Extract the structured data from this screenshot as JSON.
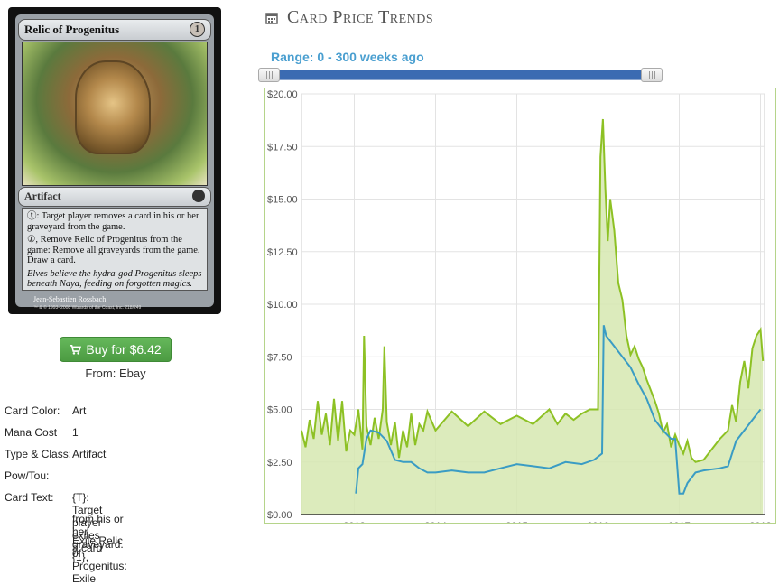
{
  "card": {
    "name": "Relic of Progenitus",
    "cost": "1",
    "type": "Artifact",
    "ability1": ": Target player removes a card in his or her graveyard from the game.",
    "ability2": ", Remove Relic of Progenitus from the game: Remove all graveyards from the game. Draw a card.",
    "flavor": "Elves believe the hydra-god Progenitus sleeps beneath Naya, feeding on forgotten magics.",
    "artist": "Jean-Sebastien Rossbach",
    "copyright": "™ & © 1993–2008 Wizards of the Coast, Inc. 218/249"
  },
  "buy": {
    "label": "Buy for $6.42",
    "from": "From: Ebay"
  },
  "props": {
    "color_label": "Card Color:",
    "color_value": "Art",
    "mana_label": "Mana Cost",
    "mana_value": "1",
    "type_label": "Type & Class:",
    "type_value": "Artifact",
    "pow_label": "Pow/Tou:",
    "pow_value": "",
    "text_label": "Card Text:",
    "text_lines": [
      "{T}: Target player exiles a card",
      "from his or her graveyard. {1},",
      "Exile Relic of Progenitus: Exile"
    ]
  },
  "trends": {
    "title": "Card Price Trends",
    "range": "Range: 0 - 300 weeks ago"
  },
  "colors": {
    "accent": "#4a9fd0",
    "slider": "#3b6bb2",
    "button": "#5cb85c",
    "line_green": "#8dc124",
    "fill_green": "#d6e8b0",
    "line_blue": "#3a9cc4"
  },
  "chart_data": {
    "type": "area",
    "ylim": [
      0,
      20
    ],
    "xlim": [
      2012.35,
      2018.05
    ],
    "y_ticks": [
      "$0.00",
      "$2.50",
      "$5.00",
      "$7.50",
      "$10.00",
      "$12.50",
      "$15.00",
      "$17.50",
      "$20.00"
    ],
    "x_ticks": [
      "2013",
      "2014",
      "2015",
      "2016",
      "2017",
      "2018"
    ],
    "grid": true,
    "series": [
      {
        "x": [
          2012.35,
          2012.4,
          2012.45,
          2012.5,
          2012.55,
          2012.6,
          2012.65,
          2012.7,
          2012.75,
          2012.8,
          2012.85,
          2012.9,
          2012.95,
          2013.0,
          2013.05,
          2013.1,
          2013.12,
          2013.15,
          2013.2,
          2013.25,
          2013.3,
          2013.35,
          2013.37,
          2013.4,
          2013.45,
          2013.5,
          2013.55,
          2013.6,
          2013.65,
          2013.7,
          2013.75,
          2013.8,
          2013.85,
          2013.9,
          2014.0,
          2014.2,
          2014.4,
          2014.6,
          2014.8,
          2015.0,
          2015.2,
          2015.4,
          2015.5,
          2015.6,
          2015.7,
          2015.8,
          2015.9,
          2016.0,
          2016.03,
          2016.06,
          2016.09,
          2016.12,
          2016.15,
          2016.2,
          2016.25,
          2016.3,
          2016.35,
          2016.4,
          2016.45,
          2016.5,
          2016.55,
          2016.6,
          2016.65,
          2016.7,
          2016.75,
          2016.8,
          2016.85,
          2016.9,
          2016.95,
          2017.0,
          2017.05,
          2017.1,
          2017.15,
          2017.2,
          2017.3,
          2017.4,
          2017.5,
          2017.6,
          2017.65,
          2017.7,
          2017.75,
          2017.8,
          2017.85,
          2017.9,
          2017.95,
          2018.0,
          2018.03
        ],
        "values": [
          4.0,
          3.2,
          4.5,
          3.6,
          5.4,
          3.8,
          4.8,
          3.3,
          5.5,
          3.5,
          5.4,
          3.0,
          4.0,
          3.8,
          5.0,
          3.1,
          8.5,
          4.2,
          3.3,
          4.6,
          3.6,
          5.0,
          8.0,
          4.4,
          3.3,
          4.4,
          2.7,
          4.0,
          3.2,
          4.8,
          3.3,
          4.3,
          4.0,
          4.9,
          4.0,
          4.9,
          4.2,
          4.9,
          4.3,
          4.7,
          4.3,
          5.0,
          4.3,
          4.8,
          4.5,
          4.8,
          5.0,
          5.0,
          17.0,
          18.8,
          15.5,
          13.0,
          15.0,
          13.5,
          11.0,
          10.2,
          8.5,
          7.6,
          8.0,
          7.4,
          7.0,
          6.4,
          5.9,
          5.4,
          4.8,
          3.9,
          4.3,
          3.2,
          3.8,
          3.3,
          2.9,
          3.5,
          2.7,
          2.5,
          2.6,
          3.1,
          3.6,
          4.0,
          5.2,
          4.4,
          6.3,
          7.3,
          6.0,
          7.9,
          8.5,
          8.8,
          7.3
        ]
      },
      {
        "x": [
          2012.35,
          2012.6,
          2012.9,
          2013.0,
          2013.02,
          2013.05,
          2013.1,
          2013.15,
          2013.2,
          2013.3,
          2013.4,
          2013.5,
          2013.6,
          2013.7,
          2013.8,
          2013.9,
          2014.0,
          2014.2,
          2014.4,
          2014.6,
          2014.8,
          2015.0,
          2015.2,
          2015.4,
          2015.6,
          2015.8,
          2015.95,
          2016.05,
          2016.07,
          2016.1,
          2016.2,
          2016.3,
          2016.4,
          2016.5,
          2016.6,
          2016.7,
          2016.8,
          2016.9,
          2016.95,
          2017.0,
          2017.05,
          2017.1,
          2017.2,
          2017.3,
          2017.5,
          2017.6,
          2017.7,
          2017.8,
          2017.9,
          2018.0
        ],
        "values": [
          null,
          null,
          null,
          null,
          1.0,
          2.2,
          2.4,
          3.6,
          4.0,
          3.9,
          3.5,
          2.6,
          2.5,
          2.5,
          2.2,
          2.0,
          2.0,
          2.1,
          2.0,
          2.0,
          2.2,
          2.4,
          2.3,
          2.2,
          2.5,
          2.4,
          2.6,
          2.9,
          9.0,
          8.5,
          8.0,
          7.5,
          7.0,
          6.2,
          5.5,
          4.5,
          4.0,
          3.6,
          3.6,
          1.0,
          1.0,
          1.5,
          2.0,
          2.1,
          2.2,
          2.3,
          3.5,
          4.0,
          4.5,
          5.0
        ]
      }
    ]
  }
}
